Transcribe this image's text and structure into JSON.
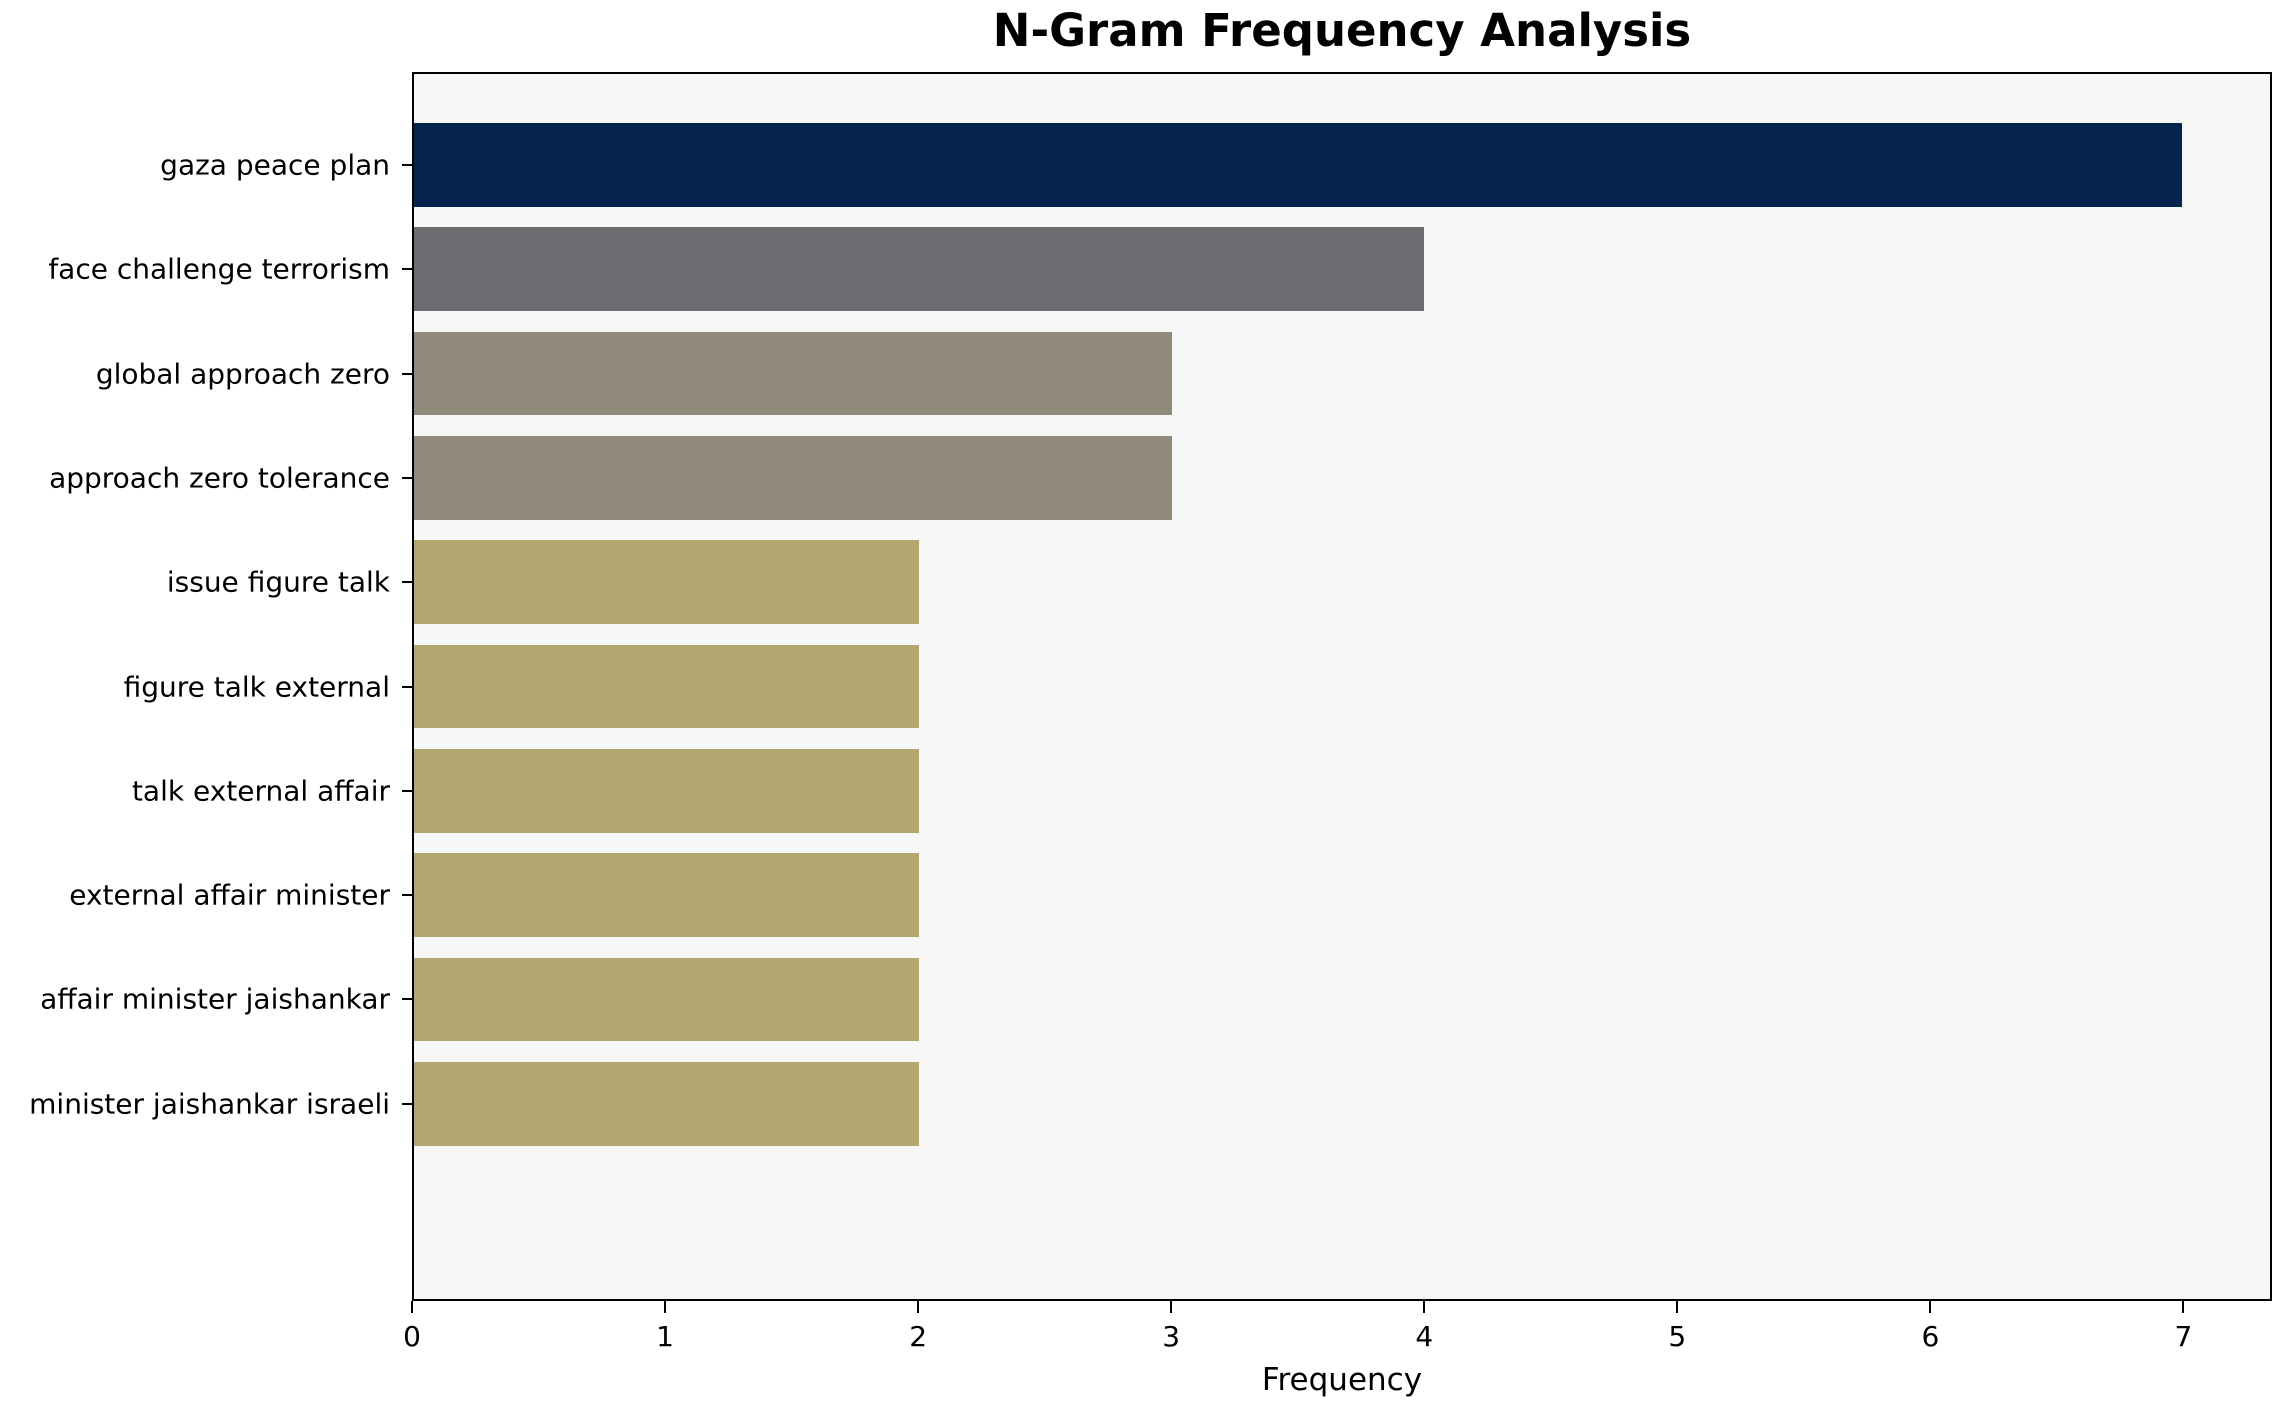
{
  "chart_title": "N-Gram Frequency Analysis",
  "chart_data": {
    "type": "bar",
    "orientation": "horizontal",
    "title": "N-Gram Frequency Analysis",
    "xlabel": "Frequency",
    "ylabel": "",
    "categories": [
      "gaza peace plan",
      "face challenge terrorism",
      "global approach zero",
      "approach zero tolerance",
      "issue figure talk",
      "figure talk external",
      "talk external affair",
      "external affair minister",
      "affair minister jaishankar",
      "minister jaishankar israeli"
    ],
    "values": [
      7,
      4,
      3,
      3,
      2,
      2,
      2,
      2,
      2,
      2
    ],
    "bar_colors": [
      "#04234d",
      "#6c6c71",
      "#908a7a",
      "#908a7a",
      "#b2a76e",
      "#b2a76e",
      "#b2a76e",
      "#b2a76e",
      "#b2a76e",
      "#b2a76e"
    ],
    "xticks": [
      0,
      1,
      2,
      3,
      4,
      5,
      6,
      7
    ],
    "xlim": [
      0,
      7.35
    ],
    "bar_height_fraction": 0.8,
    "grid": false,
    "legend_position": "none",
    "plot_background": "#f7f7f7",
    "figure_background": "#ffffff",
    "axis_color": "#000000"
  }
}
